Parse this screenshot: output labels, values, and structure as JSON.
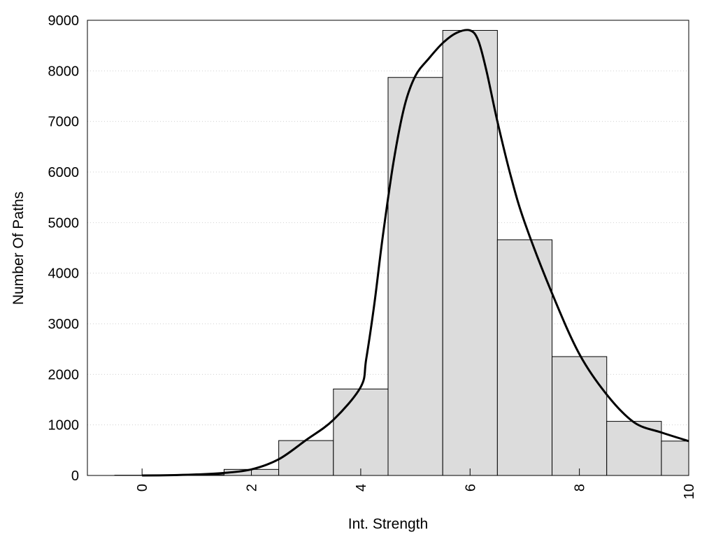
{
  "chart_data": {
    "type": "bar",
    "xlabel": "Int. Strength",
    "ylabel": "Number Of Paths",
    "xlim": [
      -1,
      10
    ],
    "ylim": [
      0,
      9000
    ],
    "x_ticks": [
      "0",
      "2",
      "4",
      "6",
      "8",
      "10"
    ],
    "y_ticks": [
      "0",
      "1000",
      "2000",
      "3000",
      "4000",
      "5000",
      "6000",
      "7000",
      "8000",
      "9000"
    ],
    "grid": "y-dotted",
    "bar_color": "#dcdcdc",
    "line_color": "#000000",
    "series": [
      {
        "type": "bar",
        "x": [
          0,
          1,
          2,
          3,
          4,
          5,
          6,
          7,
          8,
          9,
          10
        ],
        "values": [
          5,
          15,
          120,
          690,
          1710,
          7870,
          8800,
          4660,
          2350,
          1070,
          680
        ]
      },
      {
        "type": "line",
        "x": [
          0,
          0.5,
          1,
          1.5,
          2,
          2.5,
          3,
          3.5,
          4,
          4.1,
          4.25,
          4.4,
          4.6,
          4.8,
          5,
          5.25,
          5.5,
          5.75,
          6,
          6.15,
          6.3,
          6.5,
          6.75,
          7,
          7.5,
          8,
          8.5,
          9,
          9.5,
          10
        ],
        "values": [
          0,
          5,
          20,
          50,
          120,
          320,
          700,
          1100,
          1750,
          2300,
          3400,
          4700,
          6200,
          7300,
          7900,
          8250,
          8550,
          8750,
          8800,
          8600,
          8000,
          7000,
          5900,
          5000,
          3600,
          2400,
          1600,
          1050,
          850,
          680
        ]
      }
    ]
  }
}
